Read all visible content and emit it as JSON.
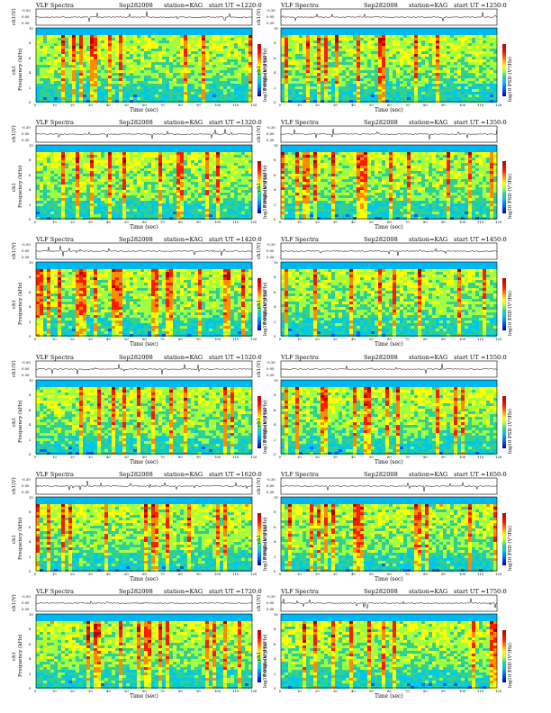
{
  "figure": {
    "xlabel": "Time (sec)",
    "ylabel_trace": "ch1(V)",
    "ylabel_spec": "Frequency (kHz)",
    "channel_label": "ch1",
    "colorbar_label": "log10 PSD (V²/Hz)"
  },
  "panels": [
    {
      "title": "VLF Spectra",
      "date": "Sep282008",
      "station": "station=KAG",
      "start": "start  UT  =1220:0"
    },
    {
      "title": "VLF Spectra",
      "date": "Sep282008",
      "station": "station=KAG",
      "start": "start  UT  =1250:0"
    },
    {
      "title": "VLF Spectra",
      "date": "Sep282008",
      "station": "station=KAG",
      "start": "start  UT  =1320:0"
    },
    {
      "title": "VLF Spectra",
      "date": "Sep282008",
      "station": "station=KAG",
      "start": "start  UT  =1350:0"
    },
    {
      "title": "VLF Spectra",
      "date": "Sep282008",
      "station": "station=KAG",
      "start": "start  UT  =1420:0"
    },
    {
      "title": "VLF Spectra",
      "date": "Sep282008",
      "station": "station=KAG",
      "start": "start  UT  =1450:0"
    },
    {
      "title": "VLF Spectra",
      "date": "Sep282008",
      "station": "station=KAG",
      "start": "start  UT  =1520:0"
    },
    {
      "title": "VLF Spectra",
      "date": "Sep282008",
      "station": "station=KAG",
      "start": "start  UT  =1550:0"
    },
    {
      "title": "VLF Spectra",
      "date": "Sep282008",
      "station": "station=KAG",
      "start": "start  UT  =1620:0"
    },
    {
      "title": "VLF Spectra",
      "date": "Sep282008",
      "station": "station=KAG",
      "start": "start  UT  =1650:0"
    },
    {
      "title": "VLF Spectra",
      "date": "Sep282008",
      "station": "station=KAG",
      "start": "start  UT  =1720:0"
    },
    {
      "title": "VLF Spectra",
      "date": "Sep282008",
      "station": "station=KAG",
      "start": "start  UT  =1750:0"
    }
  ],
  "chart_data": {
    "type": "heatmap",
    "x_axis": {
      "label": "Time (sec)",
      "range": [
        0,
        120
      ],
      "ticks": [
        0,
        10,
        20,
        30,
        40,
        50,
        60,
        70,
        80,
        90,
        100,
        110,
        120
      ]
    },
    "y_axis_spectrogram": {
      "label": "Frequency (kHz)",
      "range": [
        0,
        10
      ],
      "ticks": [
        0,
        2,
        4,
        6,
        8,
        10
      ]
    },
    "y_axis_trace": {
      "label": "ch1(V)",
      "ticks": [
        "-0.30",
        "0.00",
        "0.30"
      ]
    },
    "colormap": [
      "#0000a0",
      "#0060ff",
      "#00c8e8",
      "#30d090",
      "#a0ff40",
      "#ffff00",
      "#ff8c00",
      "#ff1a00",
      "#b80000"
    ]
  }
}
